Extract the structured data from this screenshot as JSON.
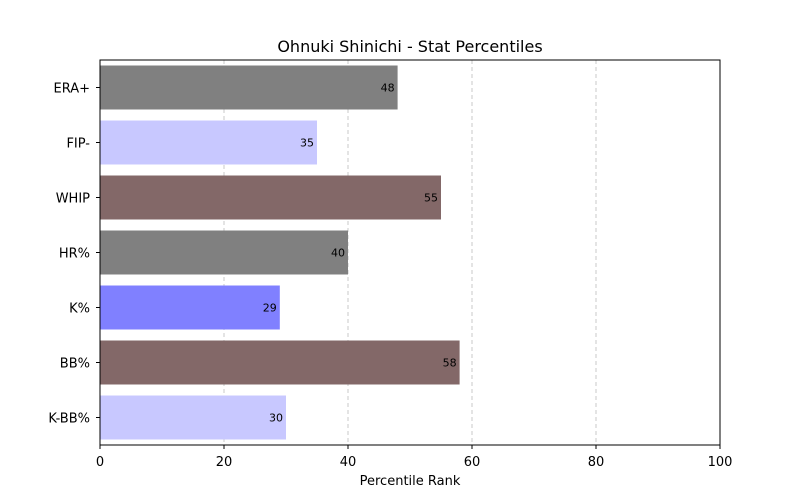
{
  "chart_data": {
    "type": "bar",
    "orientation": "horizontal",
    "title": "Ohnuki Shinichi - Stat Percentiles",
    "xlabel": "Percentile Rank",
    "ylabel": "",
    "xlim": [
      0,
      100
    ],
    "xticks": [
      0,
      20,
      40,
      60,
      80,
      100
    ],
    "grid": "x-dashed",
    "categories": [
      "ERA+",
      "FIP-",
      "WHIP",
      "HR%",
      "K%",
      "BB%",
      "K-BB%"
    ],
    "values": [
      48,
      35,
      55,
      40,
      29,
      58,
      30
    ],
    "colors": [
      "#808080",
      "#c8c8ff",
      "#836868",
      "#808080",
      "#8080ff",
      "#836868",
      "#c8c8ff"
    ]
  }
}
